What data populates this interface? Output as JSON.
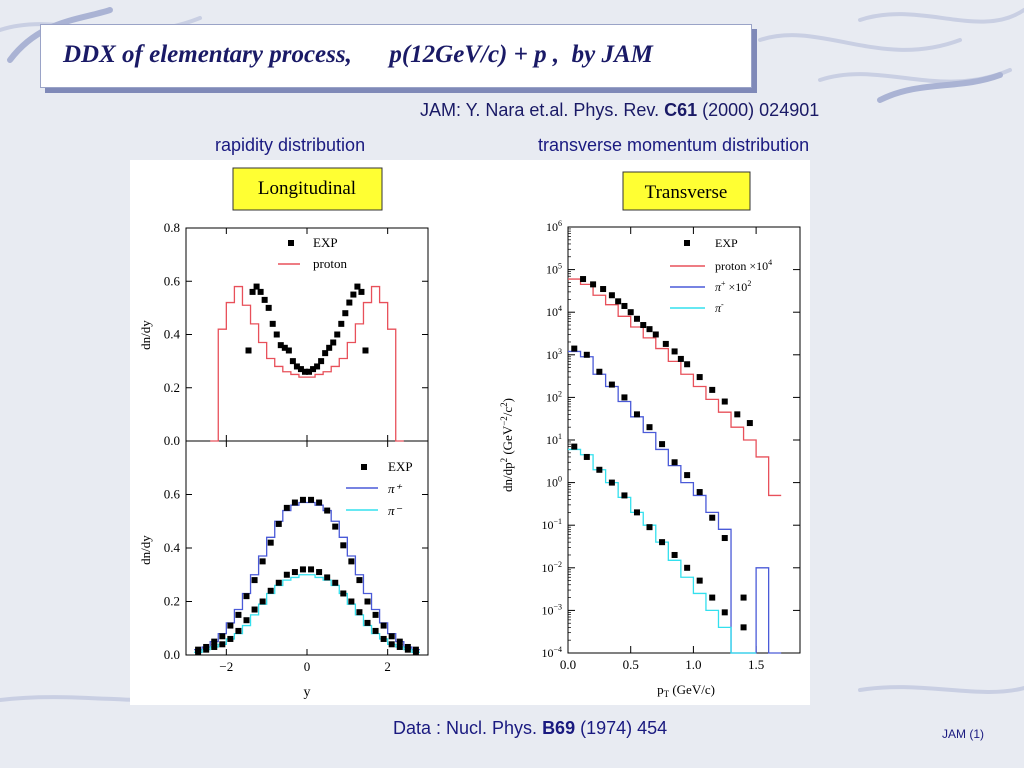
{
  "slide": {
    "title": "DDX of elementary process,      p(12GeV/c) + p ,  by JAM",
    "ref_prefix": "JAM: Y. Nara et.al. Phys. Rev. ",
    "ref_bold": "C61",
    "ref_suffix": " (2000) 024901",
    "caption_left": "rapidity distribution",
    "caption_right": "transverse momentum distribution",
    "data_prefix": "Data : Nucl. Phys. ",
    "data_bold": "B69",
    "data_suffix": " (1974) 454",
    "footer": "JAM (1)"
  },
  "colors": {
    "proton": "#e8505a",
    "piplus": "#4a5ad8",
    "piminus": "#33e0ee",
    "exp": "#000000"
  },
  "chart_data": [
    {
      "type": "line",
      "badge": "Longitudinal",
      "xlim": [
        -3,
        3
      ],
      "ylim": [
        0,
        0.8
      ],
      "ylabel": "dn/dy",
      "xlabel": "",
      "yticks": [
        "0.0",
        "0.2",
        "0.4",
        "0.6",
        "0.8"
      ],
      "legend": [
        "EXP",
        "proton"
      ],
      "series": [
        {
          "name": "proton",
          "render": "step",
          "x": [
            -2.4,
            -2.2,
            -2.0,
            -1.8,
            -1.6,
            -1.4,
            -1.2,
            -1.0,
            -0.8,
            -0.6,
            -0.4,
            -0.2,
            0.0,
            0.2,
            0.4,
            0.6,
            0.8,
            1.0,
            1.2,
            1.4,
            1.6,
            1.8,
            2.0,
            2.2,
            2.4
          ],
          "y": [
            0.0,
            0.42,
            0.52,
            0.58,
            0.51,
            0.44,
            0.37,
            0.31,
            0.28,
            0.26,
            0.25,
            0.24,
            0.24,
            0.25,
            0.26,
            0.28,
            0.31,
            0.37,
            0.44,
            0.52,
            0.58,
            0.52,
            0.42,
            0.0,
            0.0
          ]
        },
        {
          "name": "EXP",
          "render": "points",
          "x": [
            -1.45,
            -1.35,
            -1.25,
            -1.15,
            -1.05,
            -0.95,
            -0.85,
            -0.75,
            -0.65,
            -0.55,
            -0.45,
            -0.35,
            -0.25,
            -0.15,
            -0.05,
            0.05,
            0.15,
            0.25,
            0.35,
            0.45,
            0.55,
            0.65,
            0.75,
            0.85,
            0.95,
            1.05,
            1.15,
            1.25,
            1.35,
            1.45
          ],
          "y": [
            0.34,
            0.56,
            0.58,
            0.56,
            0.53,
            0.5,
            0.44,
            0.4,
            0.36,
            0.35,
            0.34,
            0.3,
            0.28,
            0.27,
            0.26,
            0.26,
            0.27,
            0.28,
            0.3,
            0.33,
            0.35,
            0.37,
            0.4,
            0.44,
            0.48,
            0.52,
            0.55,
            0.58,
            0.56,
            0.34
          ]
        }
      ]
    },
    {
      "type": "line",
      "xlim": [
        -3,
        3
      ],
      "ylim": [
        0,
        0.8
      ],
      "ylabel": "dn/dy",
      "xlabel": "y",
      "xticks": [
        "−2",
        "0",
        "2"
      ],
      "yticks": [
        "0.0",
        "0.2",
        "0.4",
        "0.6"
      ],
      "legend": [
        "EXP",
        "π⁺",
        "π⁻"
      ],
      "series": [
        {
          "name": "π⁺",
          "render": "step",
          "x": [
            -2.8,
            -2.6,
            -2.4,
            -2.2,
            -2.0,
            -1.8,
            -1.6,
            -1.4,
            -1.2,
            -1.0,
            -0.8,
            -0.6,
            -0.4,
            -0.2,
            0.0,
            0.2,
            0.4,
            0.6,
            0.8,
            1.0,
            1.2,
            1.4,
            1.6,
            1.8,
            2.0,
            2.2,
            2.4,
            2.6,
            2.8
          ],
          "y": [
            0.02,
            0.03,
            0.05,
            0.08,
            0.12,
            0.17,
            0.23,
            0.3,
            0.37,
            0.44,
            0.5,
            0.54,
            0.56,
            0.57,
            0.57,
            0.56,
            0.54,
            0.5,
            0.44,
            0.37,
            0.3,
            0.23,
            0.17,
            0.12,
            0.08,
            0.05,
            0.03,
            0.02,
            0.02
          ]
        },
        {
          "name": "π⁻",
          "render": "step",
          "x": [
            -2.8,
            -2.6,
            -2.4,
            -2.2,
            -2.0,
            -1.8,
            -1.6,
            -1.4,
            -1.2,
            -1.0,
            -0.8,
            -0.6,
            -0.4,
            -0.2,
            0.0,
            0.2,
            0.4,
            0.6,
            0.8,
            1.0,
            1.2,
            1.4,
            1.6,
            1.8,
            2.0,
            2.2,
            2.4,
            2.6,
            2.8
          ],
          "y": [
            0.01,
            0.02,
            0.03,
            0.04,
            0.06,
            0.08,
            0.11,
            0.15,
            0.19,
            0.23,
            0.26,
            0.28,
            0.29,
            0.3,
            0.3,
            0.29,
            0.28,
            0.26,
            0.23,
            0.19,
            0.15,
            0.11,
            0.08,
            0.06,
            0.04,
            0.03,
            0.02,
            0.01,
            0.01
          ]
        },
        {
          "name": "EXP π⁺",
          "render": "points",
          "x": [
            -2.7,
            -2.5,
            -2.3,
            -2.1,
            -1.9,
            -1.7,
            -1.5,
            -1.3,
            -1.1,
            -0.9,
            -0.7,
            -0.5,
            -0.3,
            -0.1,
            0.1,
            0.3,
            0.5,
            0.7,
            0.9,
            1.1,
            1.3,
            1.5,
            1.7,
            1.9,
            2.1,
            2.3,
            2.5,
            2.7
          ],
          "y": [
            0.02,
            0.03,
            0.05,
            0.07,
            0.11,
            0.15,
            0.22,
            0.28,
            0.35,
            0.42,
            0.49,
            0.55,
            0.57,
            0.58,
            0.58,
            0.57,
            0.54,
            0.48,
            0.41,
            0.35,
            0.28,
            0.2,
            0.15,
            0.11,
            0.07,
            0.05,
            0.03,
            0.02
          ]
        },
        {
          "name": "EXP π⁻",
          "render": "points",
          "x": [
            -2.7,
            -2.5,
            -2.3,
            -2.1,
            -1.9,
            -1.7,
            -1.5,
            -1.3,
            -1.1,
            -0.9,
            -0.7,
            -0.5,
            -0.3,
            -0.1,
            0.1,
            0.3,
            0.5,
            0.7,
            0.9,
            1.1,
            1.3,
            1.5,
            1.7,
            1.9,
            2.1,
            2.3,
            2.5,
            2.7
          ],
          "y": [
            0.01,
            0.02,
            0.03,
            0.04,
            0.06,
            0.09,
            0.13,
            0.17,
            0.2,
            0.24,
            0.27,
            0.3,
            0.31,
            0.32,
            0.32,
            0.31,
            0.29,
            0.27,
            0.23,
            0.2,
            0.16,
            0.12,
            0.09,
            0.06,
            0.04,
            0.03,
            0.02,
            0.01
          ]
        }
      ]
    },
    {
      "type": "line",
      "badge": "Transverse",
      "scale": "log",
      "xlim": [
        0,
        1.85
      ],
      "ylim": [
        0.0001,
        1000000
      ],
      "xlabel": "p_T (GeV/c)",
      "ylabel": "dn/dp^2 (GeV^-2/c^2)",
      "xticks": [
        "0.0",
        "0.5",
        "1.0",
        "1.5"
      ],
      "yticks": [
        "10^-4",
        "10^-3",
        "10^-2",
        "10^-1",
        "10^0",
        "10^1",
        "10^2",
        "10^3",
        "10^4",
        "10^5",
        "10^6"
      ],
      "legend": [
        "EXP",
        "proton ×10^4",
        "π⁺ ×10^2",
        "π⁻"
      ],
      "series": [
        {
          "name": "proton ×10^4",
          "render": "step",
          "x": [
            0.0,
            0.1,
            0.2,
            0.3,
            0.4,
            0.5,
            0.6,
            0.7,
            0.8,
            0.9,
            1.0,
            1.1,
            1.2,
            1.3,
            1.4,
            1.5,
            1.6,
            1.7
          ],
          "y": [
            60000,
            45000,
            25000,
            15000,
            8000,
            4500,
            2500,
            1400,
            700,
            350,
            180,
            90,
            45,
            20,
            10,
            4,
            0.5,
            0.0001
          ]
        },
        {
          "name": "π⁺ ×10^2",
          "render": "step",
          "x": [
            0.0,
            0.1,
            0.2,
            0.3,
            0.4,
            0.5,
            0.6,
            0.7,
            0.8,
            0.9,
            1.0,
            1.1,
            1.2,
            1.3,
            1.4,
            1.5,
            1.6,
            1.7
          ],
          "y": [
            1200,
            900,
            350,
            180,
            80,
            35,
            15,
            6,
            2.5,
            1,
            0.5,
            0.2,
            0.08,
            0.0001,
            0.0001,
            0.01,
            0.0001,
            0.0001
          ]
        },
        {
          "name": "π⁻",
          "render": "step",
          "x": [
            0.0,
            0.1,
            0.2,
            0.3,
            0.4,
            0.5,
            0.6,
            0.7,
            0.8,
            0.9,
            1.0,
            1.1,
            1.2,
            1.3,
            1.4,
            1.5
          ],
          "y": [
            6,
            4.5,
            2,
            1,
            0.45,
            0.2,
            0.1,
            0.04,
            0.015,
            0.006,
            0.0025,
            0.001,
            0.0004,
            0.0001,
            0.0001,
            0.0001
          ]
        },
        {
          "name": "EXP proton",
          "render": "points",
          "x": [
            0.12,
            0.2,
            0.28,
            0.35,
            0.4,
            0.45,
            0.5,
            0.55,
            0.6,
            0.65,
            0.7,
            0.78,
            0.85,
            0.9,
            0.95,
            1.05,
            1.15,
            1.25,
            1.35,
            1.45
          ],
          "y": [
            60000,
            45000,
            35000,
            25000,
            18000,
            14000,
            10000,
            7000,
            5000,
            4000,
            3000,
            1800,
            1200,
            800,
            600,
            300,
            150,
            80,
            40,
            25
          ]
        },
        {
          "name": "EXP π⁺",
          "render": "points",
          "x": [
            0.05,
            0.15,
            0.25,
            0.35,
            0.45,
            0.55,
            0.65,
            0.75,
            0.85,
            0.95,
            1.05,
            1.15,
            1.25,
            1.4
          ],
          "y": [
            1400,
            1000,
            400,
            200,
            100,
            40,
            20,
            8,
            3,
            1.5,
            0.6,
            0.15,
            0.05,
            0.002
          ]
        },
        {
          "name": "EXP π⁻",
          "render": "points",
          "x": [
            0.05,
            0.15,
            0.25,
            0.35,
            0.45,
            0.55,
            0.65,
            0.75,
            0.85,
            0.95,
            1.05,
            1.15,
            1.25,
            1.4
          ],
          "y": [
            7,
            4,
            2,
            1,
            0.5,
            0.2,
            0.09,
            0.04,
            0.02,
            0.01,
            0.005,
            0.002,
            0.0009,
            0.0004
          ]
        }
      ]
    }
  ]
}
